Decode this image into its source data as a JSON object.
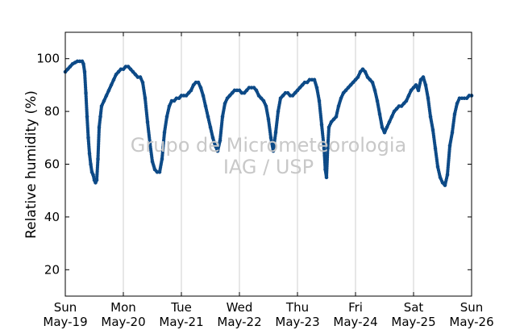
{
  "chart_data": {
    "type": "scatter",
    "ylabel": "Relative humidity (%)",
    "xlabel": "",
    "ylim": [
      10,
      110
    ],
    "yticks": [
      20,
      40,
      60,
      80,
      100
    ],
    "xlim": [
      "2014-05-19 00:00",
      "2014-05-26 00:00"
    ],
    "xticks": [
      {
        "day": "Sun",
        "date": "May-19"
      },
      {
        "day": "Mon",
        "date": "May-20"
      },
      {
        "day": "Tue",
        "date": "May-21"
      },
      {
        "day": "Wed",
        "date": "May-22"
      },
      {
        "day": "Thu",
        "date": "May-23"
      },
      {
        "day": "Fri",
        "date": "May-24"
      },
      {
        "day": "Sat",
        "date": "May-25"
      },
      {
        "day": "Sun",
        "date": "May-26"
      }
    ],
    "grid": "vertical",
    "marker_color": "#0d4a87",
    "watermark": [
      "Grupo de Micrometeorologia",
      "IAG / USP"
    ],
    "series": [
      {
        "points": [
          [
            "2014-05-19 00:00",
            95
          ],
          [
            "2014-05-19 01:00",
            96
          ],
          [
            "2014-05-19 02:00",
            97
          ],
          [
            "2014-05-19 03:00",
            98
          ],
          [
            "2014-05-19 04:00",
            98.5
          ],
          [
            "2014-05-19 05:00",
            99
          ],
          [
            "2014-05-19 06:00",
            99
          ],
          [
            "2014-05-19 07:00",
            99
          ],
          [
            "2014-05-19 07:30",
            98
          ],
          [
            "2014-05-19 08:00",
            95
          ],
          [
            "2014-05-19 08:30",
            87
          ],
          [
            "2014-05-19 09:00",
            78
          ],
          [
            "2014-05-19 09:30",
            70
          ],
          [
            "2014-05-19 10:00",
            64
          ],
          [
            "2014-05-19 10:30",
            60
          ],
          [
            "2014-05-19 11:00",
            57
          ],
          [
            "2014-05-19 11:30",
            56
          ],
          [
            "2014-05-19 12:00",
            54
          ],
          [
            "2014-05-19 12:30",
            53
          ],
          [
            "2014-05-19 13:00",
            54
          ],
          [
            "2014-05-19 13:30",
            62
          ],
          [
            "2014-05-19 14:00",
            74
          ],
          [
            "2014-05-19 14:30",
            78
          ],
          [
            "2014-05-19 15:00",
            82
          ],
          [
            "2014-05-19 16:00",
            84
          ],
          [
            "2014-05-19 17:00",
            86
          ],
          [
            "2014-05-19 18:00",
            88
          ],
          [
            "2014-05-19 19:00",
            90
          ],
          [
            "2014-05-19 20:00",
            92
          ],
          [
            "2014-05-19 21:00",
            94
          ],
          [
            "2014-05-19 22:00",
            95
          ],
          [
            "2014-05-19 23:00",
            96
          ],
          [
            "2014-05-20 00:00",
            96
          ],
          [
            "2014-05-20 01:00",
            97
          ],
          [
            "2014-05-20 02:00",
            97
          ],
          [
            "2014-05-20 03:00",
            96
          ],
          [
            "2014-05-20 04:00",
            95
          ],
          [
            "2014-05-20 05:00",
            94
          ],
          [
            "2014-05-20 06:00",
            93
          ],
          [
            "2014-05-20 07:00",
            93
          ],
          [
            "2014-05-20 08:00",
            91
          ],
          [
            "2014-05-20 09:00",
            85
          ],
          [
            "2014-05-20 10:00",
            76
          ],
          [
            "2014-05-20 11:00",
            68
          ],
          [
            "2014-05-20 12:00",
            61
          ],
          [
            "2014-05-20 13:00",
            58
          ],
          [
            "2014-05-20 14:00",
            57
          ],
          [
            "2014-05-20 15:00",
            57
          ],
          [
            "2014-05-20 16:00",
            62
          ],
          [
            "2014-05-20 17:00",
            72
          ],
          [
            "2014-05-20 18:00",
            78
          ],
          [
            "2014-05-20 19:00",
            82
          ],
          [
            "2014-05-20 20:00",
            84
          ],
          [
            "2014-05-20 21:00",
            84
          ],
          [
            "2014-05-20 22:00",
            85
          ],
          [
            "2014-05-20 23:00",
            85
          ],
          [
            "2014-05-21 00:00",
            86
          ],
          [
            "2014-05-21 01:00",
            86
          ],
          [
            "2014-05-21 02:00",
            86
          ],
          [
            "2014-05-21 03:00",
            87
          ],
          [
            "2014-05-21 04:00",
            88
          ],
          [
            "2014-05-21 05:00",
            90
          ],
          [
            "2014-05-21 06:00",
            91
          ],
          [
            "2014-05-21 07:00",
            91
          ],
          [
            "2014-05-21 08:00",
            89
          ],
          [
            "2014-05-21 09:00",
            86
          ],
          [
            "2014-05-21 10:00",
            82
          ],
          [
            "2014-05-21 11:00",
            78
          ],
          [
            "2014-05-21 12:00",
            74
          ],
          [
            "2014-05-21 13:00",
            70
          ],
          [
            "2014-05-21 14:00",
            67
          ],
          [
            "2014-05-21 15:00",
            65
          ],
          [
            "2014-05-21 16:00",
            69
          ],
          [
            "2014-05-21 17:00",
            78
          ],
          [
            "2014-05-21 18:00",
            83
          ],
          [
            "2014-05-21 19:00",
            85
          ],
          [
            "2014-05-21 20:00",
            86
          ],
          [
            "2014-05-21 21:00",
            87
          ],
          [
            "2014-05-21 22:00",
            88
          ],
          [
            "2014-05-21 23:00",
            88
          ],
          [
            "2014-05-22 00:00",
            88
          ],
          [
            "2014-05-22 01:00",
            87
          ],
          [
            "2014-05-22 02:00",
            87
          ],
          [
            "2014-05-22 03:00",
            88
          ],
          [
            "2014-05-22 04:00",
            89
          ],
          [
            "2014-05-22 05:00",
            89
          ],
          [
            "2014-05-22 06:00",
            89
          ],
          [
            "2014-05-22 07:00",
            88
          ],
          [
            "2014-05-22 08:00",
            86
          ],
          [
            "2014-05-22 09:00",
            85
          ],
          [
            "2014-05-22 10:00",
            84
          ],
          [
            "2014-05-22 11:00",
            82
          ],
          [
            "2014-05-22 12:00",
            77
          ],
          [
            "2014-05-22 13:00",
            70
          ],
          [
            "2014-05-22 14:00",
            65
          ],
          [
            "2014-05-22 15:00",
            72
          ],
          [
            "2014-05-22 16:00",
            80
          ],
          [
            "2014-05-22 17:00",
            85
          ],
          [
            "2014-05-22 18:00",
            86
          ],
          [
            "2014-05-22 19:00",
            87
          ],
          [
            "2014-05-22 20:00",
            87
          ],
          [
            "2014-05-22 21:00",
            86
          ],
          [
            "2014-05-22 22:00",
            86
          ],
          [
            "2014-05-22 23:00",
            87
          ],
          [
            "2014-05-23 00:00",
            88
          ],
          [
            "2014-05-23 01:00",
            89
          ],
          [
            "2014-05-23 02:00",
            90
          ],
          [
            "2014-05-23 03:00",
            91
          ],
          [
            "2014-05-23 04:00",
            91
          ],
          [
            "2014-05-23 05:00",
            92
          ],
          [
            "2014-05-23 06:00",
            92
          ],
          [
            "2014-05-23 07:00",
            92
          ],
          [
            "2014-05-23 08:00",
            89
          ],
          [
            "2014-05-23 09:00",
            84
          ],
          [
            "2014-05-23 10:00",
            75
          ],
          [
            "2014-05-23 11:00",
            66
          ],
          [
            "2014-05-23 11:30",
            58
          ],
          [
            "2014-05-23 12:00",
            55
          ],
          [
            "2014-05-23 12:30",
            66
          ],
          [
            "2014-05-23 13:00",
            74
          ],
          [
            "2014-05-23 14:00",
            76
          ],
          [
            "2014-05-23 15:00",
            77
          ],
          [
            "2014-05-23 16:00",
            78
          ],
          [
            "2014-05-23 17:00",
            82
          ],
          [
            "2014-05-23 18:00",
            85
          ],
          [
            "2014-05-23 19:00",
            87
          ],
          [
            "2014-05-23 20:00",
            88
          ],
          [
            "2014-05-23 21:00",
            89
          ],
          [
            "2014-05-23 22:00",
            90
          ],
          [
            "2014-05-23 23:00",
            91
          ],
          [
            "2014-05-24 00:00",
            92
          ],
          [
            "2014-05-24 01:00",
            93
          ],
          [
            "2014-05-24 02:00",
            95
          ],
          [
            "2014-05-24 03:00",
            96
          ],
          [
            "2014-05-24 04:00",
            95
          ],
          [
            "2014-05-24 05:00",
            93
          ],
          [
            "2014-05-24 06:00",
            92
          ],
          [
            "2014-05-24 07:00",
            91
          ],
          [
            "2014-05-24 08:00",
            88
          ],
          [
            "2014-05-24 09:00",
            84
          ],
          [
            "2014-05-24 10:00",
            79
          ],
          [
            "2014-05-24 11:00",
            74
          ],
          [
            "2014-05-24 12:00",
            72
          ],
          [
            "2014-05-24 13:00",
            74
          ],
          [
            "2014-05-24 14:00",
            76
          ],
          [
            "2014-05-24 15:00",
            78
          ],
          [
            "2014-05-24 16:00",
            80
          ],
          [
            "2014-05-24 17:00",
            81
          ],
          [
            "2014-05-24 18:00",
            82
          ],
          [
            "2014-05-24 19:00",
            82
          ],
          [
            "2014-05-24 20:00",
            83
          ],
          [
            "2014-05-24 21:00",
            84
          ],
          [
            "2014-05-24 22:00",
            86
          ],
          [
            "2014-05-24 23:00",
            88
          ],
          [
            "2014-05-25 00:00",
            89
          ],
          [
            "2014-05-25 01:00",
            90
          ],
          [
            "2014-05-25 02:00",
            88
          ],
          [
            "2014-05-25 03:00",
            92
          ],
          [
            "2014-05-25 04:00",
            93
          ],
          [
            "2014-05-25 05:00",
            90
          ],
          [
            "2014-05-25 06:00",
            85
          ],
          [
            "2014-05-25 07:00",
            78
          ],
          [
            "2014-05-25 08:00",
            73
          ],
          [
            "2014-05-25 09:00",
            66
          ],
          [
            "2014-05-25 10:00",
            59
          ],
          [
            "2014-05-25 11:00",
            55
          ],
          [
            "2014-05-25 12:00",
            53
          ],
          [
            "2014-05-25 13:00",
            52
          ],
          [
            "2014-05-25 14:00",
            56
          ],
          [
            "2014-05-25 15:00",
            67
          ],
          [
            "2014-05-25 16:00",
            72
          ],
          [
            "2014-05-25 17:00",
            79
          ],
          [
            "2014-05-25 18:00",
            83
          ],
          [
            "2014-05-25 19:00",
            85
          ],
          [
            "2014-05-25 20:00",
            85
          ],
          [
            "2014-05-25 21:00",
            85
          ],
          [
            "2014-05-25 22:00",
            85
          ],
          [
            "2014-05-25 23:00",
            86
          ],
          [
            "2014-05-26 00:00",
            86
          ]
        ]
      }
    ]
  }
}
